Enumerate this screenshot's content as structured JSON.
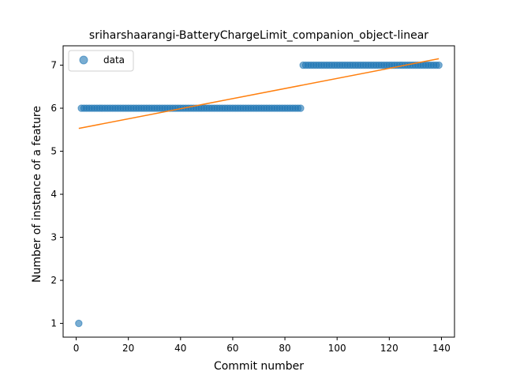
{
  "chart_data": {
    "type": "scatter",
    "title": "sriharshaarangi-BatteryChargeLimit_companion_object-linear",
    "xlabel": "Commit number",
    "ylabel": "Number of instance of a feature",
    "xlim": [
      -5,
      145
    ],
    "ylim": [
      0.68,
      7.45
    ],
    "xticks": [
      0,
      20,
      40,
      60,
      80,
      100,
      120,
      140
    ],
    "yticks": [
      1,
      2,
      3,
      4,
      5,
      6,
      7
    ],
    "legend": {
      "placement": "top-left",
      "entries": [
        "data"
      ]
    },
    "grid": false,
    "colors": {
      "points": "#1f77b4",
      "fit": "#ff7f0e"
    },
    "series": [
      {
        "name": "data",
        "kind": "scatter",
        "segments": [
          {
            "x_start": 1,
            "x_end": 1,
            "y": 1
          },
          {
            "x_start": 2,
            "x_end": 86,
            "y": 6
          },
          {
            "x_start": 87,
            "x_end": 139,
            "y": 7
          }
        ]
      },
      {
        "kind": "line",
        "x": [
          1,
          139
        ],
        "y": [
          5.53,
          7.15
        ]
      }
    ]
  }
}
